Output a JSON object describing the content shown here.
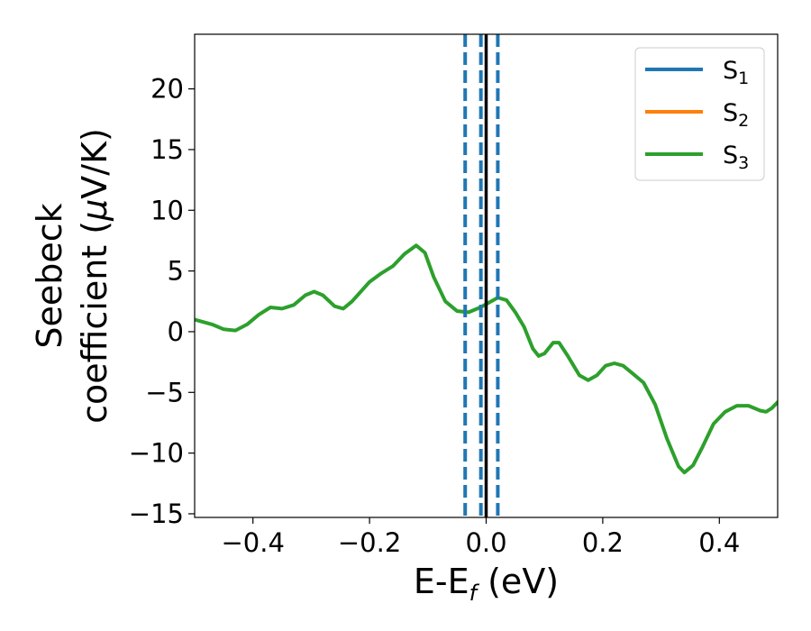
{
  "chart_data": {
    "type": "line",
    "xlabel": {
      "main": "E-E",
      "sub": "f",
      "tail": " (eV)"
    },
    "ylabel": {
      "line1": "Seebeck",
      "line2_text": "coefficient  (",
      "line2_mu": "μ",
      "line2_tail": "V/K)"
    },
    "xlim": [
      -0.5,
      0.5
    ],
    "ylim": [
      -15.3,
      24.5
    ],
    "x_ticks": [
      -0.4,
      -0.2,
      0.0,
      0.2,
      0.4
    ],
    "x_tick_labels": [
      "−0.4",
      "−0.2",
      "0.0",
      "0.2",
      "0.4"
    ],
    "y_ticks": [
      -15,
      -10,
      -5,
      0,
      5,
      10,
      15,
      20
    ],
    "y_tick_labels": [
      "−15",
      "−10",
      "−5",
      "0",
      "5",
      "10",
      "15",
      "20"
    ],
    "legend": {
      "position": "top-right"
    },
    "series": [
      {
        "name": "S",
        "sub": "1",
        "color": "#1f77b4"
      },
      {
        "name": "S",
        "sub": "2",
        "color": "#ff7f0e"
      },
      {
        "name": "S",
        "sub": "3",
        "color": "#2ca02c",
        "points": [
          [
            -0.5,
            1.0
          ],
          [
            -0.47,
            0.6
          ],
          [
            -0.45,
            0.2
          ],
          [
            -0.43,
            0.1
          ],
          [
            -0.41,
            0.6
          ],
          [
            -0.39,
            1.4
          ],
          [
            -0.37,
            2.0
          ],
          [
            -0.35,
            1.9
          ],
          [
            -0.33,
            2.2
          ],
          [
            -0.31,
            3.0
          ],
          [
            -0.295,
            3.3
          ],
          [
            -0.28,
            3.0
          ],
          [
            -0.26,
            2.1
          ],
          [
            -0.245,
            1.9
          ],
          [
            -0.23,
            2.5
          ],
          [
            -0.2,
            4.1
          ],
          [
            -0.18,
            4.8
          ],
          [
            -0.16,
            5.4
          ],
          [
            -0.14,
            6.4
          ],
          [
            -0.12,
            7.1
          ],
          [
            -0.105,
            6.5
          ],
          [
            -0.09,
            4.5
          ],
          [
            -0.07,
            2.5
          ],
          [
            -0.05,
            1.7
          ],
          [
            -0.03,
            1.6
          ],
          [
            -0.01,
            2.0
          ],
          [
            0.005,
            2.4
          ],
          [
            0.02,
            2.8
          ],
          [
            0.035,
            2.6
          ],
          [
            0.05,
            1.6
          ],
          [
            0.065,
            0.4
          ],
          [
            0.08,
            -1.4
          ],
          [
            0.09,
            -2.0
          ],
          [
            0.1,
            -1.8
          ],
          [
            0.115,
            -0.9
          ],
          [
            0.125,
            -0.9
          ],
          [
            0.14,
            -2.0
          ],
          [
            0.16,
            -3.6
          ],
          [
            0.175,
            -4.0
          ],
          [
            0.19,
            -3.6
          ],
          [
            0.205,
            -2.8
          ],
          [
            0.22,
            -2.6
          ],
          [
            0.235,
            -2.8
          ],
          [
            0.25,
            -3.4
          ],
          [
            0.27,
            -4.2
          ],
          [
            0.29,
            -6.0
          ],
          [
            0.31,
            -8.8
          ],
          [
            0.33,
            -11.1
          ],
          [
            0.34,
            -11.6
          ],
          [
            0.355,
            -11.0
          ],
          [
            0.37,
            -9.6
          ],
          [
            0.39,
            -7.6
          ],
          [
            0.41,
            -6.6
          ],
          [
            0.43,
            -6.1
          ],
          [
            0.45,
            -6.1
          ],
          [
            0.47,
            -6.5
          ],
          [
            0.48,
            -6.6
          ],
          [
            0.49,
            -6.3
          ],
          [
            0.5,
            -5.8
          ]
        ]
      }
    ],
    "vlines": [
      {
        "x": 0.0,
        "style": "solid",
        "color": "#000000"
      },
      {
        "x": -0.036,
        "style": "dashed",
        "color": "#1f77b4"
      },
      {
        "x": -0.009,
        "style": "dashed",
        "color": "#1f77b4"
      },
      {
        "x": 0.02,
        "style": "dashed",
        "color": "#1f77b4"
      }
    ]
  }
}
